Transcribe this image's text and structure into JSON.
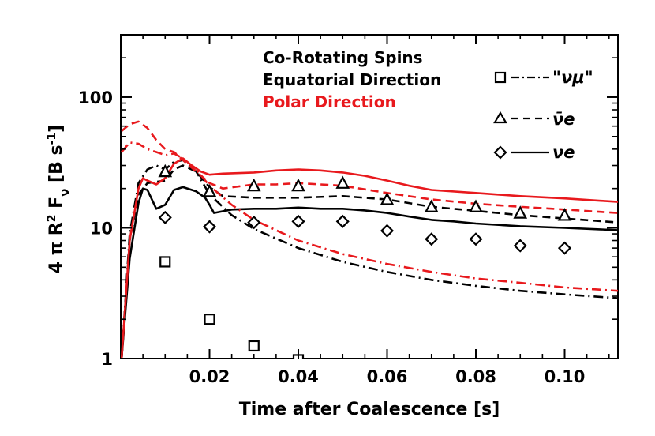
{
  "chart_data": {
    "type": "line",
    "xlabel": "Time after Coalescence [s]",
    "ylabel": "4 π R² Fν [B s⁻¹]",
    "ylabel_parts": {
      "prefix": "4 π R",
      "sup1": "2",
      "mid": " F",
      "sub1": "ν",
      "unit": " [B s",
      "sup2": "-1",
      "close": "]"
    },
    "xlim": [
      0.0,
      0.112
    ],
    "ylim": [
      1,
      300
    ],
    "yscale": "log",
    "x_ticks": [
      0.02,
      0.04,
      0.06,
      0.08,
      0.1
    ],
    "x_tick_labels": [
      "0.02",
      "0.04",
      "0.06",
      "0.08",
      "0.10"
    ],
    "y_ticks": [
      1,
      10,
      100
    ],
    "y_tick_labels": [
      "1",
      "10",
      "100"
    ],
    "annotations": [
      {
        "text": "Co-Rotating Spins",
        "color": "#000000"
      },
      {
        "text": "Equatorial Direction",
        "color": "#000000"
      },
      {
        "text": "Polar Direction",
        "color": "#e8191d"
      }
    ],
    "legend": {
      "placement": "top-right",
      "entries": [
        {
          "label": "\"νμ\"",
          "marker": "square",
          "line": "dashdot"
        },
        {
          "label": "ν̄e",
          "marker": "triangle",
          "line": "dashed"
        },
        {
          "label": "νe",
          "marker": "diamond",
          "line": "solid"
        }
      ]
    },
    "series": [
      {
        "name": "nu_e equatorial",
        "color": "#000000",
        "dash": "solid",
        "x": [
          0.0002,
          0.002,
          0.004,
          0.005,
          0.006,
          0.008,
          0.01,
          0.012,
          0.014,
          0.017,
          0.019,
          0.02,
          0.021,
          0.025,
          0.03,
          0.035,
          0.04,
          0.045,
          0.05,
          0.055,
          0.06,
          0.065,
          0.07,
          0.075,
          0.08,
          0.09,
          0.1,
          0.112
        ],
        "y": [
          1.0,
          5.8,
          15.5,
          20.0,
          19.5,
          14.0,
          15.0,
          19.5,
          20.5,
          19.0,
          17.0,
          15.0,
          13.0,
          13.8,
          14.0,
          14.0,
          14.3,
          14.0,
          14.0,
          13.6,
          13.0,
          12.2,
          11.5,
          11.2,
          10.8,
          10.3,
          10.0,
          9.6
        ]
      },
      {
        "name": "anti-nu_e equatorial",
        "color": "#000000",
        "dash": "dashed",
        "x": [
          0.0002,
          0.002,
          0.004,
          0.006,
          0.008,
          0.01,
          0.012,
          0.014,
          0.017,
          0.02,
          0.023,
          0.03,
          0.04,
          0.05,
          0.06,
          0.07,
          0.08,
          0.09,
          0.1,
          0.112
        ],
        "y": [
          1.0,
          8.0,
          18.0,
          22.0,
          22.5,
          23.0,
          28.0,
          30.0,
          27.0,
          20.5,
          17.5,
          17.0,
          17.0,
          17.5,
          16.5,
          14.5,
          13.5,
          12.5,
          11.8,
          11.0
        ]
      },
      {
        "name": "nu_mu equatorial",
        "color": "#000000",
        "dash": "dashdot",
        "x": [
          0.0002,
          0.002,
          0.004,
          0.006,
          0.008,
          0.01,
          0.012,
          0.014,
          0.017,
          0.02,
          0.025,
          0.03,
          0.04,
          0.05,
          0.06,
          0.07,
          0.08,
          0.09,
          0.1,
          0.112
        ],
        "y": [
          1.0,
          9.0,
          22.0,
          28.0,
          30.0,
          28.0,
          32.0,
          33.0,
          27.0,
          18.0,
          12.5,
          9.8,
          7.0,
          5.5,
          4.6,
          4.0,
          3.6,
          3.3,
          3.1,
          2.9
        ]
      },
      {
        "name": "nu_e polar",
        "color": "#e8191d",
        "dash": "solid",
        "x": [
          0.0002,
          0.002,
          0.004,
          0.005,
          0.006,
          0.008,
          0.01,
          0.012,
          0.014,
          0.016,
          0.018,
          0.02,
          0.023,
          0.03,
          0.035,
          0.04,
          0.045,
          0.05,
          0.055,
          0.06,
          0.065,
          0.07,
          0.08,
          0.09,
          0.1,
          0.112
        ],
        "y": [
          1.0,
          8.0,
          20.0,
          24.0,
          23.0,
          21.5,
          24.0,
          31.0,
          34.0,
          30.0,
          27.0,
          25.5,
          26.0,
          26.5,
          27.5,
          28.0,
          27.5,
          26.5,
          25.0,
          23.0,
          21.0,
          19.5,
          18.5,
          17.5,
          16.8,
          15.8
        ]
      },
      {
        "name": "anti-nu_e polar",
        "color": "#e8191d",
        "dash": "dashed",
        "x": [
          0.0002,
          0.002,
          0.004,
          0.006,
          0.008,
          0.01,
          0.012,
          0.014,
          0.017,
          0.02,
          0.023,
          0.03,
          0.035,
          0.04,
          0.05,
          0.06,
          0.07,
          0.08,
          0.09,
          0.1,
          0.112
        ],
        "y": [
          55.0,
          62.0,
          65.0,
          58.0,
          47.0,
          40.0,
          38.0,
          33.0,
          27.0,
          22.0,
          20.0,
          21.5,
          21.5,
          22.0,
          21.0,
          18.5,
          16.5,
          15.3,
          14.5,
          13.8,
          13.0
        ]
      },
      {
        "name": "nu_mu polar",
        "color": "#e8191d",
        "dash": "dashdot",
        "x": [
          0.0002,
          0.002,
          0.004,
          0.006,
          0.008,
          0.01,
          0.012,
          0.014,
          0.017,
          0.02,
          0.025,
          0.03,
          0.04,
          0.05,
          0.06,
          0.07,
          0.08,
          0.09,
          0.1,
          0.112
        ],
        "y": [
          38.0,
          45.0,
          44.0,
          40.0,
          38.0,
          36.0,
          37.0,
          34.0,
          28.0,
          21.0,
          15.0,
          11.5,
          8.0,
          6.3,
          5.3,
          4.6,
          4.1,
          3.8,
          3.5,
          3.3
        ]
      }
    ],
    "markers": [
      {
        "name": "\"νμ\"",
        "shape": "square",
        "x": [
          0.01,
          0.02,
          0.03,
          0.04
        ],
        "y": [
          5.5,
          2.0,
          1.25,
          0.98
        ]
      },
      {
        "name": "ν̄e",
        "shape": "triangle",
        "x": [
          0.01,
          0.02,
          0.03,
          0.04,
          0.05,
          0.06,
          0.07,
          0.08,
          0.09,
          0.1
        ],
        "y": [
          27.0,
          19.0,
          21.0,
          21.0,
          22.0,
          16.5,
          14.5,
          14.5,
          13.0,
          12.5
        ]
      },
      {
        "name": "νe",
        "shape": "diamond",
        "x": [
          0.01,
          0.02,
          0.03,
          0.04,
          0.05,
          0.06,
          0.07,
          0.08,
          0.09,
          0.1
        ],
        "y": [
          12.0,
          10.2,
          11.0,
          11.2,
          11.2,
          9.5,
          8.2,
          8.2,
          7.3,
          7.0
        ]
      }
    ]
  }
}
